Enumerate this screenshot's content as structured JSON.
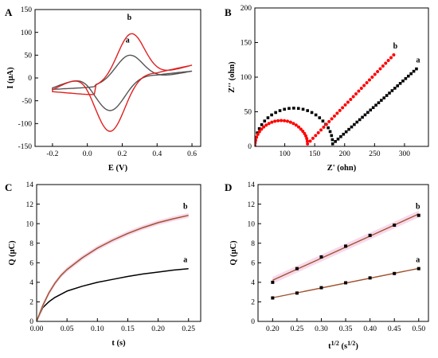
{
  "chart_data": [
    {
      "panel": "A",
      "type": "line",
      "xlabel": "E (V)",
      "ylabel": "I (μA)",
      "xlim": [
        -0.3,
        0.65
      ],
      "ylim": [
        -150,
        150
      ],
      "xticks": [
        -0.2,
        0.0,
        0.2,
        0.4,
        0.6
      ],
      "yticks": [
        -150,
        -100,
        -50,
        0,
        50,
        100,
        150
      ],
      "xtick_labels": [
        "-0.2",
        "0.0",
        "0.2",
        "0.4",
        "0.6"
      ],
      "ytick_labels": [
        "-150",
        "-100",
        "-50",
        "0",
        "50",
        "100",
        "150"
      ],
      "series": [
        {
          "name": "a",
          "color": "#555555",
          "cv": {
            "Epa": 0.24,
            "Ipa": 65,
            "Epc": 0.13,
            "Ipc": -75,
            "Ineg": -25,
            "Ipos": 15,
            "Ic_anodic": -20,
            "Ic_cathodic": 7
          }
        },
        {
          "name": "b",
          "color": "#e02020",
          "cv": {
            "Epa": 0.25,
            "Ipa": 115,
            "Epc": 0.13,
            "Ipc": -123,
            "Ineg": -30,
            "Ipos": 28,
            "Ic_anodic": -38,
            "Ic_cathodic": 12
          }
        }
      ]
    },
    {
      "panel": "B",
      "type": "scatter",
      "xlabel": "Z' (ohn)",
      "ylabel": "Z'' (ohn)",
      "xlim": [
        50,
        340
      ],
      "ylim": [
        0,
        200
      ],
      "xticks": [
        100,
        150,
        200,
        250,
        300
      ],
      "yticks": [
        0,
        50,
        100,
        150,
        200
      ],
      "xtick_labels": [
        "100",
        "150",
        "200",
        "250",
        "300"
      ],
      "ytick_labels": [
        "0",
        "50",
        "100",
        "150",
        "200"
      ],
      "series": [
        {
          "name": "a",
          "color": "#000000",
          "marker": "square",
          "eis": {
            "R0": 50,
            "R1": 180,
            "tail_slope": 0.98,
            "x_end": 320
          }
        },
        {
          "name": "b",
          "color": "#ff0000",
          "marker": "circle",
          "eis": {
            "R0": 50,
            "R1": 138,
            "tail_slope": 0.96,
            "x_end": 282
          }
        }
      ]
    },
    {
      "panel": "C",
      "type": "line",
      "xlabel": "t (s)",
      "ylabel": "Q (μC)",
      "xlim": [
        0,
        0.27
      ],
      "ylim": [
        0,
        14
      ],
      "xticks": [
        0.0,
        0.05,
        0.1,
        0.15,
        0.2,
        0.25
      ],
      "yticks": [
        0,
        2,
        4,
        6,
        8,
        10,
        12,
        14
      ],
      "xtick_labels": [
        "0.00",
        "0.05",
        "0.10",
        "0.15",
        "0.20",
        "0.25"
      ],
      "ytick_labels": [
        "0",
        "2",
        "4",
        "6",
        "8",
        "10",
        "12",
        "14"
      ],
      "series": [
        {
          "name": "a",
          "color": "#000000",
          "t": [
            0,
            0.01,
            0.02,
            0.03,
            0.05,
            0.075,
            0.1,
            0.125,
            0.15,
            0.175,
            0.2,
            0.225,
            0.25
          ],
          "q": [
            0,
            1.4,
            2.0,
            2.45,
            3.1,
            3.6,
            4.0,
            4.3,
            4.6,
            4.85,
            5.05,
            5.25,
            5.4
          ]
        },
        {
          "name": "b",
          "color": "#a0522d",
          "t": [
            0,
            0.01,
            0.02,
            0.03,
            0.04,
            0.05,
            0.075,
            0.1,
            0.125,
            0.15,
            0.175,
            0.2,
            0.225,
            0.25
          ],
          "q": [
            0,
            1.6,
            2.9,
            3.9,
            4.7,
            5.3,
            6.5,
            7.5,
            8.3,
            9.0,
            9.6,
            10.1,
            10.5,
            10.85
          ]
        }
      ]
    },
    {
      "panel": "D",
      "type": "scatter",
      "xlabel": "t1/2 (s1/2)",
      "ylabel": "Q (μC)",
      "xlim": [
        0.17,
        0.52
      ],
      "ylim": [
        0,
        14
      ],
      "xticks": [
        0.2,
        0.25,
        0.3,
        0.35,
        0.4,
        0.45,
        0.5
      ],
      "yticks": [
        0,
        2,
        4,
        6,
        8,
        10,
        12,
        14
      ],
      "xtick_labels": [
        "0.20",
        "0.25",
        "0.30",
        "0.35",
        "0.40",
        "0.45",
        "0.50"
      ],
      "ytick_labels": [
        "0",
        "2",
        "4",
        "6",
        "8",
        "10",
        "12",
        "14"
      ],
      "series": [
        {
          "name": "a",
          "color": "#000000",
          "line_color": "#a0522d",
          "x": [
            0.2,
            0.25,
            0.3,
            0.35,
            0.4,
            0.45,
            0.5
          ],
          "y": [
            2.4,
            2.9,
            3.45,
            3.95,
            4.45,
            4.9,
            5.4
          ]
        },
        {
          "name": "b",
          "color": "#000000",
          "line_color": "#a0522d",
          "x": [
            0.2,
            0.25,
            0.3,
            0.35,
            0.4,
            0.45,
            0.5
          ],
          "y": [
            4.0,
            5.4,
            6.6,
            7.7,
            8.8,
            9.85,
            10.85
          ]
        }
      ]
    }
  ]
}
